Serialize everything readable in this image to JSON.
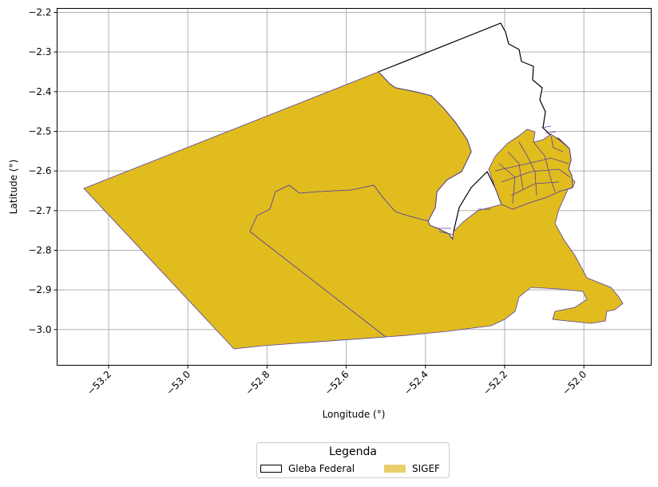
{
  "map": {
    "xlabel": "Longitude (°)",
    "ylabel": "Latitude (°)",
    "xlim": [
      -53.33,
      -51.83
    ],
    "ylim": [
      -3.09,
      -2.19
    ],
    "xticks": [
      "−53.2",
      "−53.0",
      "−52.8",
      "−52.6",
      "−52.4",
      "−52.2",
      "−52.0"
    ],
    "yticks": [
      "−2.2",
      "−2.3",
      "−2.4",
      "−2.5",
      "−2.6",
      "−2.7",
      "−2.8",
      "−2.9",
      "−3.0"
    ],
    "grid": true,
    "colors": {
      "sigef_fill": "#e0bc1f",
      "sigef_edge": "#5a3fa0",
      "gleba_edge": "#000000",
      "grid": "#b0b0b0"
    }
  },
  "legend": {
    "title": "Legenda",
    "placement": "bottom-center",
    "items": [
      {
        "label": "Gleba Federal",
        "color": "#ffffff"
      },
      {
        "label": "SIGEF",
        "color": "#e8cf6c"
      }
    ]
  }
}
